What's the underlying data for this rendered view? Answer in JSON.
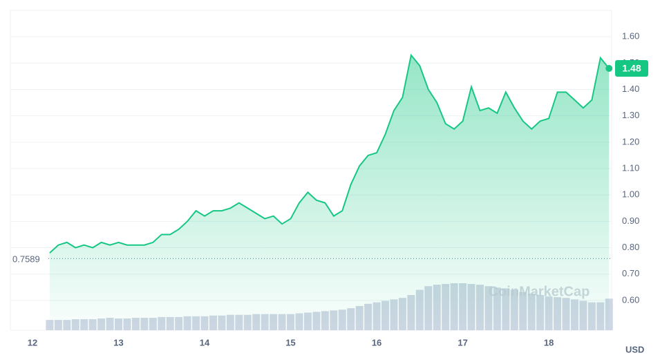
{
  "chart_data": {
    "type": "line",
    "x": [
      12.2,
      12.3,
      12.4,
      12.5,
      12.6,
      12.7,
      12.8,
      12.9,
      13.0,
      13.1,
      13.2,
      13.3,
      13.4,
      13.5,
      13.6,
      13.7,
      13.8,
      13.9,
      14.0,
      14.1,
      14.2,
      14.3,
      14.4,
      14.5,
      14.6,
      14.7,
      14.8,
      14.9,
      15.0,
      15.1,
      15.2,
      15.3,
      15.4,
      15.5,
      15.6,
      15.7,
      15.8,
      15.9,
      16.0,
      16.1,
      16.2,
      16.3,
      16.4,
      16.5,
      16.6,
      16.7,
      16.8,
      16.9,
      17.0,
      17.1,
      17.2,
      17.3,
      17.4,
      17.5,
      17.6,
      17.7,
      17.8,
      17.9,
      18.0,
      18.1,
      18.2,
      18.3,
      18.4,
      18.5,
      18.6,
      18.7
    ],
    "series": [
      {
        "color": "#16c784",
        "values": [
          0.78,
          0.81,
          0.82,
          0.8,
          0.81,
          0.8,
          0.82,
          0.81,
          0.82,
          0.81,
          0.81,
          0.81,
          0.82,
          0.85,
          0.85,
          0.87,
          0.9,
          0.94,
          0.92,
          0.94,
          0.94,
          0.95,
          0.97,
          0.95,
          0.93,
          0.91,
          0.92,
          0.89,
          0.91,
          0.97,
          1.01,
          0.98,
          0.97,
          0.92,
          0.94,
          1.04,
          1.11,
          1.15,
          1.16,
          1.23,
          1.32,
          1.37,
          1.53,
          1.49,
          1.4,
          1.35,
          1.27,
          1.25,
          1.28,
          1.41,
          1.32,
          1.33,
          1.31,
          1.39,
          1.33,
          1.28,
          1.25,
          1.28,
          1.29,
          1.39,
          1.39,
          1.36,
          1.33,
          1.36,
          1.52,
          1.48
        ]
      }
    ],
    "volume": {
      "color": "#cfd6e4",
      "values": [
        14,
        14,
        14,
        15,
        15,
        15,
        16,
        17,
        16,
        16,
        17,
        17,
        17,
        18,
        18,
        18,
        19,
        19,
        19,
        20,
        20,
        21,
        21,
        21,
        22,
        22,
        22,
        22,
        22,
        23,
        24,
        25,
        26,
        27,
        28,
        30,
        33,
        36,
        38,
        40,
        42,
        44,
        48,
        55,
        60,
        62,
        63,
        64,
        64,
        63,
        62,
        60,
        58,
        57,
        55,
        52,
        50,
        48,
        46,
        45,
        44,
        42,
        40,
        38,
        38,
        43
      ]
    },
    "xlim": [
      11.743,
      18.73
    ],
    "ylim": [
      0.487,
      1.7
    ],
    "xticks": [
      12,
      13,
      14,
      15,
      16,
      17,
      18
    ],
    "yticks": [
      {
        "value": 0.6,
        "label": "0.60"
      },
      {
        "value": 0.7,
        "label": "0.70"
      },
      {
        "value": 0.8,
        "label": "0.80"
      },
      {
        "value": 0.9,
        "label": "0.90"
      },
      {
        "value": 1.0,
        "label": "1.00"
      },
      {
        "value": 1.1,
        "label": "1.10"
      },
      {
        "value": 1.2,
        "label": "1.20"
      },
      {
        "value": 1.3,
        "label": "1.30"
      },
      {
        "value": 1.4,
        "label": "1.40"
      },
      {
        "value": 1.5,
        "label": "1.50"
      },
      {
        "value": 1.6,
        "label": "1.60"
      }
    ],
    "open_price": 0.7589,
    "current_price": 1.48,
    "currency": "USD",
    "watermark": "CoinMarketCap",
    "grid": true
  }
}
